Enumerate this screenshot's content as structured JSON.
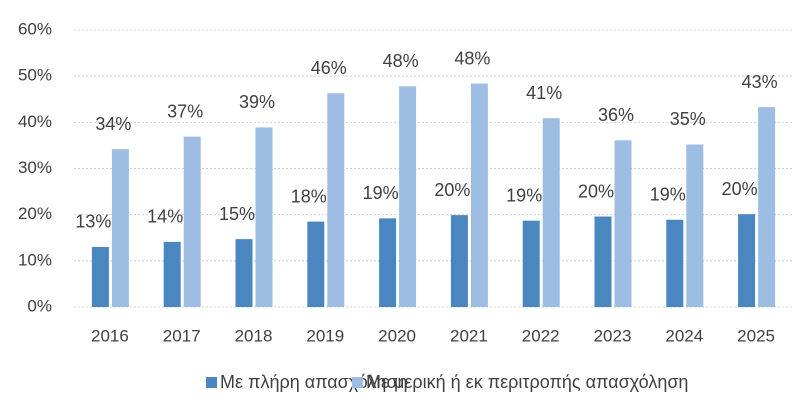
{
  "chart_data": {
    "type": "bar",
    "categories": [
      "2016",
      "2017",
      "2018",
      "2019",
      "2020",
      "2021",
      "2022",
      "2023",
      "2024",
      "2025"
    ],
    "series": [
      {
        "name": "Με πλήρη απασχόληση",
        "color": "#4a86c0",
        "values": [
          13,
          14.1,
          14.7,
          18.5,
          19.2,
          19.9,
          18.7,
          19.6,
          18.9,
          20.1
        ],
        "value_labels": [
          "13%",
          "14%",
          "15%",
          "18%",
          "19%",
          "20%",
          "19%",
          "20%",
          "19%",
          "20%"
        ]
      },
      {
        "name": "Με μερική ή εκ περιτροπής απασχόληση",
        "color": "#9dbde3",
        "values": [
          34.2,
          36.9,
          38.9,
          46.3,
          47.8,
          48.4,
          40.9,
          36.1,
          35.2,
          43.3
        ],
        "value_labels": [
          "34%",
          "37%",
          "39%",
          "46%",
          "48%",
          "48%",
          "41%",
          "36%",
          "35%",
          "43%"
        ]
      }
    ],
    "ylim": [
      0,
      60
    ],
    "yticks": [
      {
        "value": 0,
        "label": "0%"
      },
      {
        "value": 10,
        "label": "10%"
      },
      {
        "value": 20,
        "label": "20%"
      },
      {
        "value": 30,
        "label": "30%"
      },
      {
        "value": 40,
        "label": "40%"
      },
      {
        "value": 50,
        "label": "50%"
      },
      {
        "value": 60,
        "label": "60%"
      }
    ],
    "grid": true,
    "legend": "bottom"
  }
}
